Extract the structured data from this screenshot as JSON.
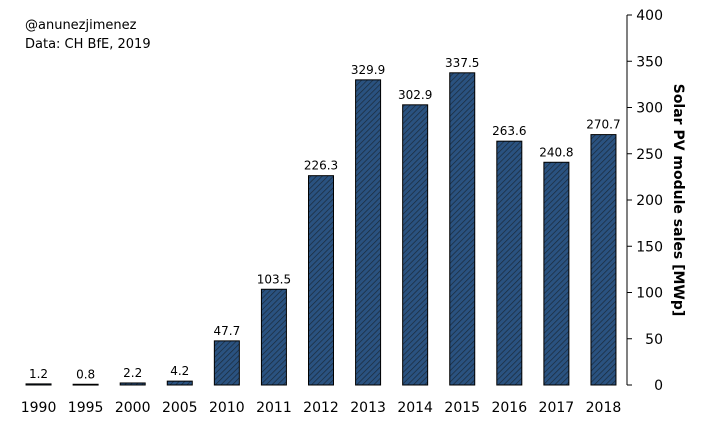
{
  "annotations": {
    "author": "@anunezjimenez",
    "source": "Data: CH BfE, 2019"
  },
  "colors": {
    "bar_fill": "#2a5280",
    "bar_hatch": "#1a2a3a",
    "bar_edge": "#000000",
    "axis": "#000000"
  },
  "chart_data": {
    "type": "bar",
    "title": "",
    "xlabel": "",
    "ylabel": "Solar PV module sales [MWp]",
    "y_axis_side": "right",
    "ylim": [
      0,
      400
    ],
    "yticks": [
      0,
      50,
      100,
      150,
      200,
      250,
      300,
      350,
      400
    ],
    "grid": false,
    "bar_style": "hatched",
    "categories": [
      "1990",
      "1995",
      "2000",
      "2005",
      "2010",
      "2011",
      "2012",
      "2013",
      "2014",
      "2015",
      "2016",
      "2017",
      "2018"
    ],
    "values": [
      1.2,
      0.8,
      2.2,
      4.2,
      47.7,
      103.5,
      226.3,
      329.9,
      302.9,
      337.5,
      263.6,
      240.8,
      270.7
    ],
    "data_labels": [
      "1.2",
      "0.8",
      "2.2",
      "4.2",
      "47.7",
      "103.5",
      "226.3",
      "329.9",
      "302.9",
      "337.5",
      "263.6",
      "240.8",
      "270.7"
    ]
  }
}
